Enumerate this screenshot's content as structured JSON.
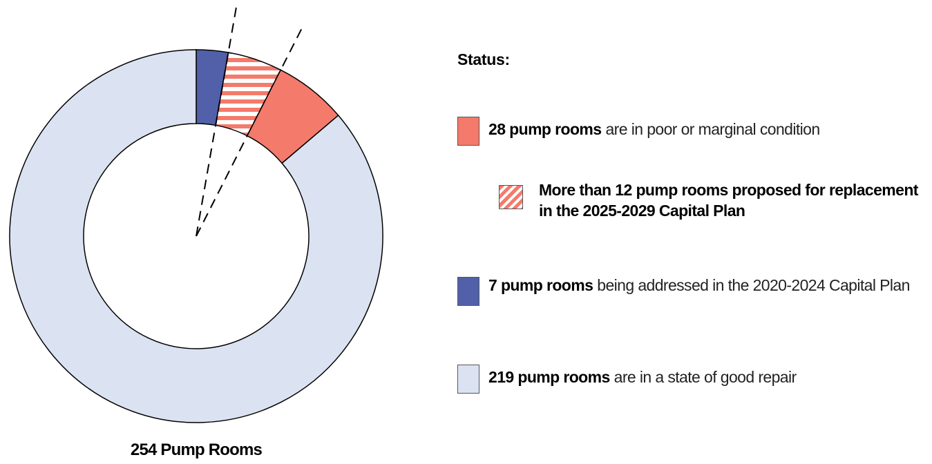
{
  "chart_data": {
    "type": "donut",
    "caption": "254 Pump Rooms",
    "values": [
      7,
      12,
      16,
      219
    ],
    "colors": [
      "#5160a8",
      "#f47a6b",
      "#f47a6b",
      "#dbe2f1"
    ],
    "hatched": [
      false,
      true,
      false,
      false
    ],
    "legend_title": "Status:",
    "legend": [
      {
        "bold": "28 pump rooms",
        "text": "are in poor or marginal condition",
        "color": "#f47a6b",
        "hatched": false
      },
      {
        "bold": "More than 12 pump rooms proposed for replacement in the 2025-2029 Capital Plan",
        "color": "#f47a6b",
        "hatched": true
      },
      {
        "bold": "7 pump rooms",
        "text": "being addressed in the 2020-2024 Capital Plan",
        "color": "#5160a8",
        "hatched": false
      },
      {
        "bold": "219 pump rooms",
        "text": "are in a state of good repair",
        "color": "#dbe2f1",
        "hatched": false
      }
    ]
  }
}
